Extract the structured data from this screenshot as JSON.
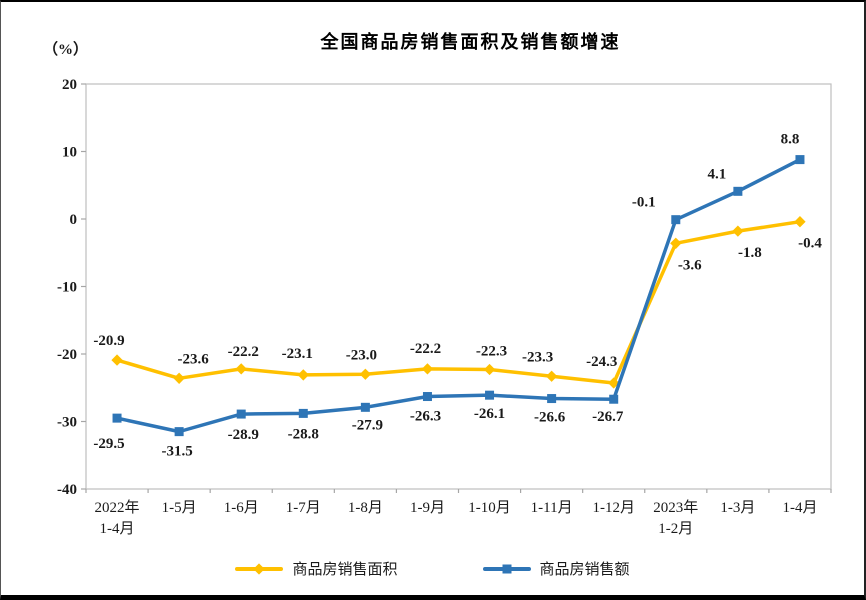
{
  "chart_data": {
    "type": "line",
    "title": "全国商品房销售面积及销售额增速",
    "ylabel": "（%）",
    "xlabel": "",
    "ylim": [
      -40,
      20
    ],
    "yticks": [
      20,
      10,
      0,
      -10,
      -20,
      -30,
      -40
    ],
    "grid": false,
    "legend_position": "bottom",
    "text_color": "#1a1a1a",
    "axis_color": "#bfbfbf",
    "tick_color": "#a6a6a6",
    "categories": [
      "2022年\n1-4月",
      "1-5月",
      "1-6月",
      "1-7月",
      "1-8月",
      "1-9月",
      "1-10月",
      "1-11月",
      "1-12月",
      "2023年\n1-2月",
      "1-3月",
      "1-4月"
    ],
    "series": [
      {
        "name": "商品房销售面积",
        "color": "#FFC000",
        "marker": "diamond",
        "values": [
          -20.9,
          -23.6,
          -22.2,
          -23.1,
          -23.0,
          -22.2,
          -22.3,
          -23.3,
          -24.3,
          -3.6,
          -1.8,
          -0.4
        ],
        "labels": [
          "-20.9",
          "-23.6",
          "-22.2",
          "-23.1",
          "-23.0",
          "-22.2",
          "-22.3",
          "-23.3",
          "-24.3",
          "-3.6",
          "-1.8",
          "-0.4"
        ],
        "label_offsets": [
          [
            -8,
            -15
          ],
          [
            14,
            -15
          ],
          [
            2,
            -13
          ],
          [
            -6,
            -17
          ],
          [
            -4,
            -15
          ],
          [
            -2,
            -16
          ],
          [
            2,
            -14
          ],
          [
            -14,
            -15
          ],
          [
            -12,
            -17
          ],
          [
            14,
            26
          ],
          [
            12,
            26
          ],
          [
            10,
            26
          ]
        ]
      },
      {
        "name": "商品房销售额",
        "color": "#2E75B6",
        "marker": "square",
        "values": [
          -29.5,
          -31.5,
          -28.9,
          -28.8,
          -27.9,
          -26.3,
          -26.1,
          -26.6,
          -26.7,
          -0.1,
          4.1,
          8.8
        ],
        "labels": [
          "-29.5",
          "-31.5",
          "-28.9",
          "-28.8",
          "-27.9",
          "-26.3",
          "-26.1",
          "-26.6",
          "-26.7",
          "-0.1",
          "4.1",
          "8.8"
        ],
        "label_offsets": [
          [
            -8,
            30
          ],
          [
            -2,
            24
          ],
          [
            2,
            25
          ],
          [
            0,
            25
          ],
          [
            2,
            22
          ],
          [
            -2,
            24
          ],
          [
            0,
            23
          ],
          [
            -2,
            23
          ],
          [
            -6,
            22
          ],
          [
            -32,
            -13
          ],
          [
            -21,
            -13
          ],
          [
            -10,
            -16
          ]
        ]
      }
    ]
  }
}
